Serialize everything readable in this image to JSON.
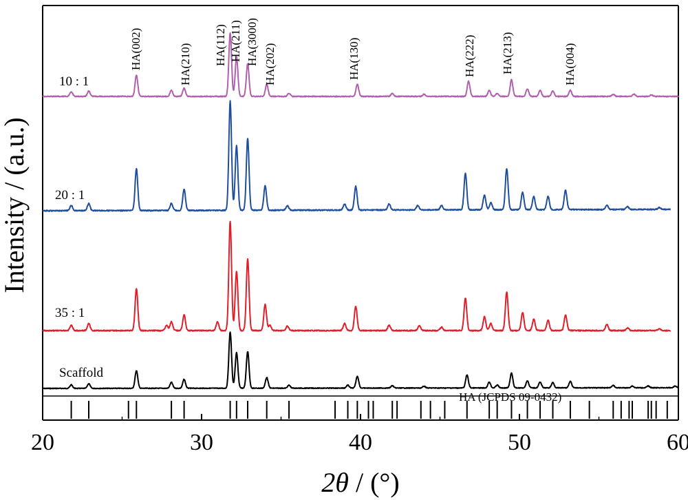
{
  "chart_data": {
    "type": "line",
    "xlabel": "2θ / (°)",
    "xlabel_var": "2θ",
    "xlabel_unit": " / (°)",
    "ylabel": "Intensity / (a.u.)",
    "xlim": [
      20,
      60
    ],
    "x_ticks": [
      20,
      30,
      40,
      50,
      60
    ],
    "y_ticks_shown": false,
    "grid": false,
    "series": [
      {
        "name": "Scaffold",
        "color": "#000000",
        "baseline": 0,
        "peaks": [
          [
            21.8,
            0.06
          ],
          [
            22.9,
            0.08
          ],
          [
            25.9,
            0.3
          ],
          [
            28.1,
            0.1
          ],
          [
            28.9,
            0.15
          ],
          [
            31.8,
            0.95
          ],
          [
            32.2,
            0.6
          ],
          [
            32.9,
            0.62
          ],
          [
            34.1,
            0.18
          ],
          [
            35.5,
            0.05
          ],
          [
            39.2,
            0.05
          ],
          [
            39.8,
            0.2
          ],
          [
            42.0,
            0.04
          ],
          [
            44.0,
            0.03
          ],
          [
            46.7,
            0.22
          ],
          [
            48.1,
            0.1
          ],
          [
            48.6,
            0.05
          ],
          [
            49.5,
            0.25
          ],
          [
            50.5,
            0.12
          ],
          [
            51.3,
            0.1
          ],
          [
            52.1,
            0.09
          ],
          [
            53.2,
            0.11
          ],
          [
            55.9,
            0.04
          ],
          [
            57.1,
            0.03
          ],
          [
            58.1,
            0.03
          ],
          [
            59.8,
            0.03
          ]
        ]
      },
      {
        "name": "35 : 1",
        "color": "#e01f2b",
        "baseline": 0,
        "peaks": [
          [
            21.8,
            0.06
          ],
          [
            22.9,
            0.08
          ],
          [
            25.9,
            0.48
          ],
          [
            27.8,
            0.06
          ],
          [
            28.1,
            0.1
          ],
          [
            28.9,
            0.18
          ],
          [
            31.0,
            0.1
          ],
          [
            31.8,
            1.25
          ],
          [
            32.2,
            0.68
          ],
          [
            32.9,
            0.82
          ],
          [
            34.0,
            0.3
          ],
          [
            34.3,
            0.06
          ],
          [
            35.4,
            0.05
          ],
          [
            39.0,
            0.08
          ],
          [
            39.7,
            0.28
          ],
          [
            41.8,
            0.06
          ],
          [
            43.7,
            0.06
          ],
          [
            45.1,
            0.04
          ],
          [
            46.6,
            0.37
          ],
          [
            47.8,
            0.16
          ],
          [
            48.2,
            0.08
          ],
          [
            49.2,
            0.44
          ],
          [
            50.2,
            0.21
          ],
          [
            50.9,
            0.13
          ],
          [
            51.8,
            0.12
          ],
          [
            52.9,
            0.18
          ],
          [
            55.5,
            0.07
          ],
          [
            56.8,
            0.03
          ],
          [
            58.8,
            0.02
          ]
        ]
      },
      {
        "name": "20 : 1",
        "color": "#1f4e9c",
        "baseline": 0,
        "peaks": [
          [
            21.8,
            0.06
          ],
          [
            22.9,
            0.08
          ],
          [
            25.9,
            0.48
          ],
          [
            28.1,
            0.08
          ],
          [
            28.9,
            0.24
          ],
          [
            31.8,
            1.25
          ],
          [
            32.2,
            0.74
          ],
          [
            32.9,
            0.82
          ],
          [
            34.0,
            0.28
          ],
          [
            35.4,
            0.05
          ],
          [
            39.0,
            0.07
          ],
          [
            39.7,
            0.27
          ],
          [
            41.8,
            0.07
          ],
          [
            43.6,
            0.05
          ],
          [
            45.1,
            0.05
          ],
          [
            46.6,
            0.42
          ],
          [
            47.8,
            0.17
          ],
          [
            48.2,
            0.08
          ],
          [
            49.2,
            0.47
          ],
          [
            50.2,
            0.2
          ],
          [
            50.9,
            0.15
          ],
          [
            51.8,
            0.15
          ],
          [
            52.9,
            0.22
          ],
          [
            55.5,
            0.05
          ],
          [
            56.8,
            0.03
          ],
          [
            58.8,
            0.02
          ]
        ]
      },
      {
        "name": "10 : 1",
        "color": "#b060ad",
        "baseline": 0,
        "peaks": [
          [
            21.8,
            0.06
          ],
          [
            22.9,
            0.07
          ],
          [
            25.9,
            0.28
          ],
          [
            28.1,
            0.08
          ],
          [
            28.9,
            0.11
          ],
          [
            31.8,
            0.84
          ],
          [
            32.2,
            0.52
          ],
          [
            32.9,
            0.43
          ],
          [
            34.1,
            0.16
          ],
          [
            35.5,
            0.04
          ],
          [
            39.8,
            0.16
          ],
          [
            42.0,
            0.04
          ],
          [
            44.0,
            0.03
          ],
          [
            46.8,
            0.2
          ],
          [
            48.1,
            0.08
          ],
          [
            48.6,
            0.04
          ],
          [
            49.5,
            0.22
          ],
          [
            50.5,
            0.1
          ],
          [
            51.3,
            0.08
          ],
          [
            52.1,
            0.07
          ],
          [
            53.2,
            0.08
          ],
          [
            55.9,
            0.03
          ],
          [
            57.2,
            0.03
          ],
          [
            58.3,
            0.02
          ]
        ]
      }
    ],
    "peak_labels": [
      "HA(002)",
      "HA(210)",
      "HA(112)",
      "HA(211)",
      "HA(3000)",
      "HA(202)",
      "HA(130)",
      "HA(222)",
      "HA(213)",
      "HA(004)"
    ],
    "reference": {
      "label": "HA (JCPDS 09-0432)",
      "positions": [
        21.8,
        22.9,
        25.4,
        25.9,
        28.1,
        28.9,
        31.8,
        32.2,
        32.9,
        34.1,
        35.5,
        38.4,
        39.2,
        39.8,
        40.5,
        40.8,
        42.0,
        42.3,
        43.8,
        44.4,
        45.3,
        46.7,
        48.1,
        48.6,
        49.5,
        50.5,
        51.3,
        52.1,
        53.2,
        54.4,
        55.9,
        56.4,
        56.9,
        57.1,
        58.1,
        58.3,
        58.6,
        59.3
      ]
    }
  }
}
